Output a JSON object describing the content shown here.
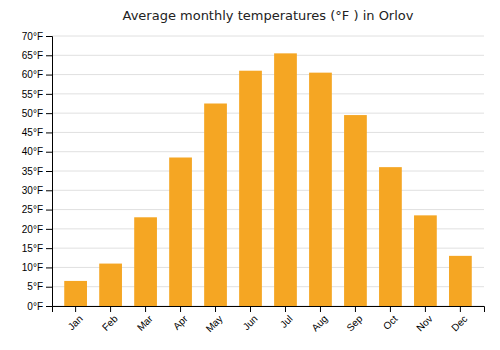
{
  "chart_data": {
    "type": "bar",
    "title": "Average monthly temperatures (°F ) in Orlov",
    "categories": [
      "Jan",
      "Feb",
      "Mar",
      "Apr",
      "May",
      "Jun",
      "Jul",
      "Aug",
      "Sep",
      "Oct",
      "Nov",
      "Dec"
    ],
    "values": [
      6.5,
      11,
      23,
      38.5,
      52.5,
      61,
      65.5,
      60.5,
      49.5,
      36,
      23.5,
      13
    ],
    "color": "#F5A623",
    "ylim": [
      0,
      70
    ],
    "yticks": [
      {
        "value": 0,
        "label": "0°F"
      },
      {
        "value": 5,
        "label": "5°F"
      },
      {
        "value": 10,
        "label": "10°F"
      },
      {
        "value": 15,
        "label": "15°F"
      },
      {
        "value": 20,
        "label": "20°F"
      },
      {
        "value": 25,
        "label": "25°F"
      },
      {
        "value": 30,
        "label": "30°F"
      },
      {
        "value": 35,
        "label": "35°F"
      },
      {
        "value": 40,
        "label": "40°F"
      },
      {
        "value": 45,
        "label": "45°F"
      },
      {
        "value": 50,
        "label": "50°F"
      },
      {
        "value": 55,
        "label": "55°F"
      },
      {
        "value": 60,
        "label": "60°F"
      },
      {
        "value": 65,
        "label": "65°F"
      },
      {
        "value": 70,
        "label": "70°F"
      }
    ],
    "grid": true
  }
}
